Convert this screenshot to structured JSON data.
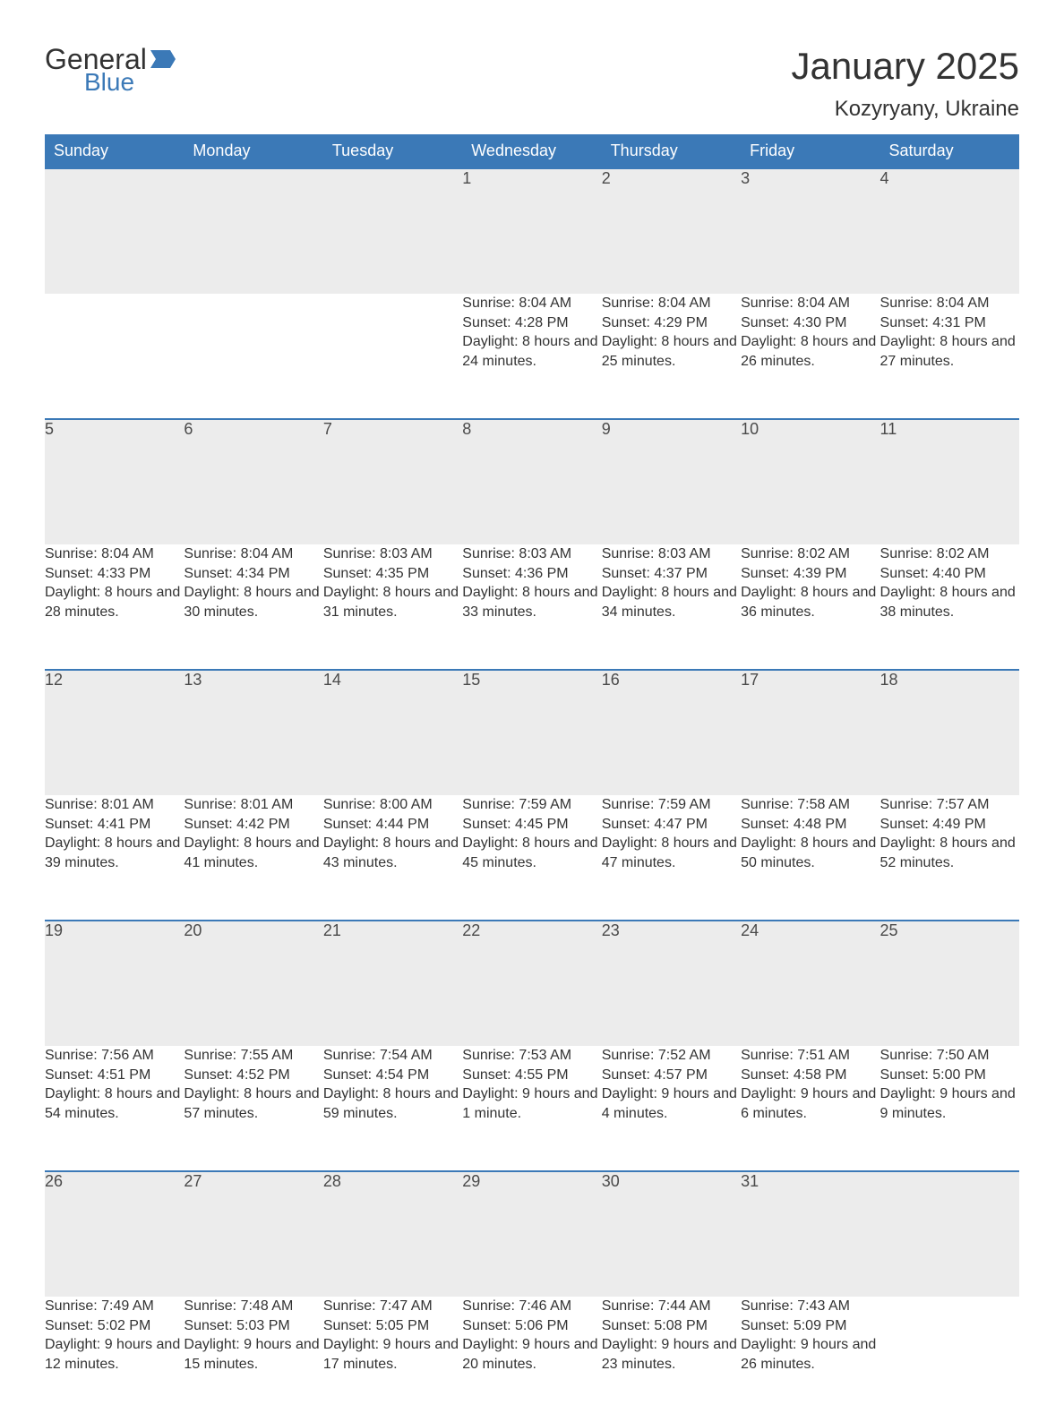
{
  "brand": {
    "word1": "General",
    "word2": "Blue",
    "flag_color": "#3b79b7"
  },
  "title": "January 2025",
  "location": "Kozyryany, Ukraine",
  "colors": {
    "header_bg": "#3b79b7",
    "header_text": "#ffffff",
    "daynum_bg": "#ececec",
    "daynum_border": "#3b79b7",
    "body_text": "#333333",
    "page_bg": "#ffffff"
  },
  "fonts": {
    "title_size_pt": 32,
    "location_size_pt": 18,
    "header_size_pt": 14,
    "daynum_size_pt": 14,
    "detail_size_pt": 12
  },
  "weekdays": [
    "Sunday",
    "Monday",
    "Tuesday",
    "Wednesday",
    "Thursday",
    "Friday",
    "Saturday"
  ],
  "weeks": [
    [
      null,
      null,
      null,
      {
        "n": "1",
        "sunrise": "8:04 AM",
        "sunset": "4:28 PM",
        "daylight": "8 hours and 24 minutes."
      },
      {
        "n": "2",
        "sunrise": "8:04 AM",
        "sunset": "4:29 PM",
        "daylight": "8 hours and 25 minutes."
      },
      {
        "n": "3",
        "sunrise": "8:04 AM",
        "sunset": "4:30 PM",
        "daylight": "8 hours and 26 minutes."
      },
      {
        "n": "4",
        "sunrise": "8:04 AM",
        "sunset": "4:31 PM",
        "daylight": "8 hours and 27 minutes."
      }
    ],
    [
      {
        "n": "5",
        "sunrise": "8:04 AM",
        "sunset": "4:33 PM",
        "daylight": "8 hours and 28 minutes."
      },
      {
        "n": "6",
        "sunrise": "8:04 AM",
        "sunset": "4:34 PM",
        "daylight": "8 hours and 30 minutes."
      },
      {
        "n": "7",
        "sunrise": "8:03 AM",
        "sunset": "4:35 PM",
        "daylight": "8 hours and 31 minutes."
      },
      {
        "n": "8",
        "sunrise": "8:03 AM",
        "sunset": "4:36 PM",
        "daylight": "8 hours and 33 minutes."
      },
      {
        "n": "9",
        "sunrise": "8:03 AM",
        "sunset": "4:37 PM",
        "daylight": "8 hours and 34 minutes."
      },
      {
        "n": "10",
        "sunrise": "8:02 AM",
        "sunset": "4:39 PM",
        "daylight": "8 hours and 36 minutes."
      },
      {
        "n": "11",
        "sunrise": "8:02 AM",
        "sunset": "4:40 PM",
        "daylight": "8 hours and 38 minutes."
      }
    ],
    [
      {
        "n": "12",
        "sunrise": "8:01 AM",
        "sunset": "4:41 PM",
        "daylight": "8 hours and 39 minutes."
      },
      {
        "n": "13",
        "sunrise": "8:01 AM",
        "sunset": "4:42 PM",
        "daylight": "8 hours and 41 minutes."
      },
      {
        "n": "14",
        "sunrise": "8:00 AM",
        "sunset": "4:44 PM",
        "daylight": "8 hours and 43 minutes."
      },
      {
        "n": "15",
        "sunrise": "7:59 AM",
        "sunset": "4:45 PM",
        "daylight": "8 hours and 45 minutes."
      },
      {
        "n": "16",
        "sunrise": "7:59 AM",
        "sunset": "4:47 PM",
        "daylight": "8 hours and 47 minutes."
      },
      {
        "n": "17",
        "sunrise": "7:58 AM",
        "sunset": "4:48 PM",
        "daylight": "8 hours and 50 minutes."
      },
      {
        "n": "18",
        "sunrise": "7:57 AM",
        "sunset": "4:49 PM",
        "daylight": "8 hours and 52 minutes."
      }
    ],
    [
      {
        "n": "19",
        "sunrise": "7:56 AM",
        "sunset": "4:51 PM",
        "daylight": "8 hours and 54 minutes."
      },
      {
        "n": "20",
        "sunrise": "7:55 AM",
        "sunset": "4:52 PM",
        "daylight": "8 hours and 57 minutes."
      },
      {
        "n": "21",
        "sunrise": "7:54 AM",
        "sunset": "4:54 PM",
        "daylight": "8 hours and 59 minutes."
      },
      {
        "n": "22",
        "sunrise": "7:53 AM",
        "sunset": "4:55 PM",
        "daylight": "9 hours and 1 minute."
      },
      {
        "n": "23",
        "sunrise": "7:52 AM",
        "sunset": "4:57 PM",
        "daylight": "9 hours and 4 minutes."
      },
      {
        "n": "24",
        "sunrise": "7:51 AM",
        "sunset": "4:58 PM",
        "daylight": "9 hours and 6 minutes."
      },
      {
        "n": "25",
        "sunrise": "7:50 AM",
        "sunset": "5:00 PM",
        "daylight": "9 hours and 9 minutes."
      }
    ],
    [
      {
        "n": "26",
        "sunrise": "7:49 AM",
        "sunset": "5:02 PM",
        "daylight": "9 hours and 12 minutes."
      },
      {
        "n": "27",
        "sunrise": "7:48 AM",
        "sunset": "5:03 PM",
        "daylight": "9 hours and 15 minutes."
      },
      {
        "n": "28",
        "sunrise": "7:47 AM",
        "sunset": "5:05 PM",
        "daylight": "9 hours and 17 minutes."
      },
      {
        "n": "29",
        "sunrise": "7:46 AM",
        "sunset": "5:06 PM",
        "daylight": "9 hours and 20 minutes."
      },
      {
        "n": "30",
        "sunrise": "7:44 AM",
        "sunset": "5:08 PM",
        "daylight": "9 hours and 23 minutes."
      },
      {
        "n": "31",
        "sunrise": "7:43 AM",
        "sunset": "5:09 PM",
        "daylight": "9 hours and 26 minutes."
      },
      null
    ]
  ],
  "labels": {
    "sunrise": "Sunrise:",
    "sunset": "Sunset:",
    "daylight": "Daylight:"
  }
}
